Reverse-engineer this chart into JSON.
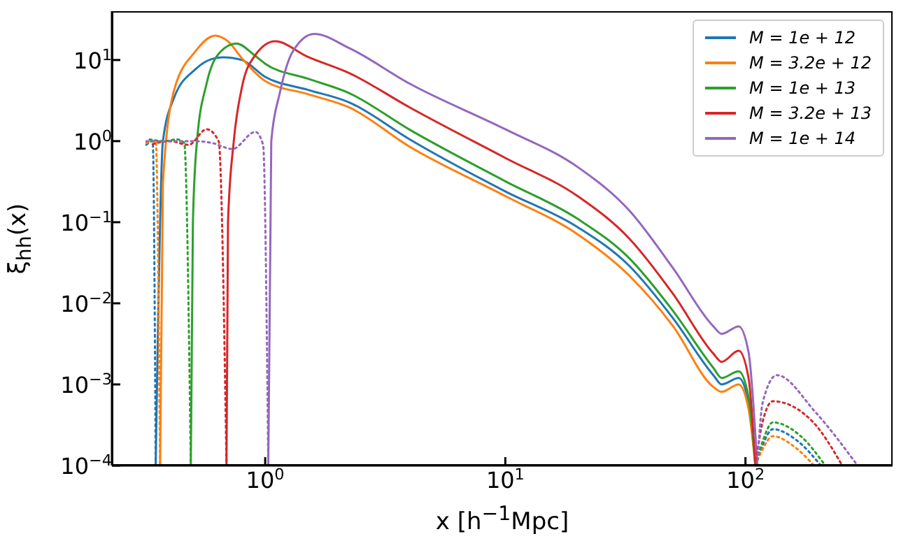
{
  "chart_data": {
    "type": "line",
    "xlabel": "x [h$^{−1}$Mpc]",
    "ylabel": "ξ$_{hh}$(x)",
    "log": "xy",
    "grid": false,
    "legend": "top right",
    "marker": "none",
    "xlim": [
      0.23,
      410
    ],
    "xticks": [
      {
        "value": 1,
        "label": "10$^{0}$"
      },
      {
        "value": 10,
        "label": "10$^{1}$"
      },
      {
        "value": 100,
        "label": "10$^{2}$"
      }
    ],
    "ylim": [
      0.0001,
      40
    ],
    "yticks": [
      {
        "value": 0.0001,
        "label": "10$^{−4}$"
      },
      {
        "value": 0.001,
        "label": "10$^{−3}$"
      },
      {
        "value": 0.01,
        "label": "10$^{−2}$"
      },
      {
        "value": 0.1,
        "label": "10$^{−1}$"
      },
      {
        "value": 1,
        "label": "10$^{0}$"
      },
      {
        "value": 10,
        "label": "10$^{1}$"
      }
    ],
    "series": [
      {
        "name": "M = 1e + 12",
        "color": "#1f77b4",
        "line_style": "solid",
        "x": [
          0.35,
          0.375,
          0.417,
          0.51,
          0.6,
          0.67,
          0.8,
          1,
          1.5,
          2.24,
          4,
          10,
          20,
          32.8,
          50,
          73.5,
          79.6,
          93.7,
          103,
          110
        ],
        "values": [
          0.0001,
          1,
          3.4,
          7.6,
          10.3,
          10.8,
          10,
          6.2,
          4.3,
          3.0,
          1.05,
          0.24,
          0.087,
          0.029,
          0.0065,
          0.0013,
          0.001,
          0.0012,
          0.0006,
          0.0001
        ]
      },
      {
        "name": "M = 3.2e + 12",
        "color": "#ff7f0e",
        "line_style": "solid",
        "x": [
          0.365,
          0.375,
          0.417,
          0.51,
          0.62,
          0.7,
          0.8,
          1,
          1.5,
          2.24,
          4,
          10,
          20,
          32.8,
          50,
          73.5,
          79.6,
          93.7,
          103,
          110
        ],
        "values": [
          0.0001,
          0.3,
          4.2,
          12.6,
          20,
          17,
          10.5,
          5.5,
          3.8,
          2.6,
          0.85,
          0.21,
          0.071,
          0.022,
          0.0052,
          0.00093,
          0.00081,
          0.001,
          0.0005,
          0.0001
        ]
      },
      {
        "name": "M = 1e + 13",
        "color": "#2ca02c",
        "line_style": "solid",
        "x": [
          0.49,
          0.5,
          0.52,
          0.57,
          0.65,
          0.76,
          0.9,
          1,
          1.5,
          2.24,
          4,
          10,
          20,
          32.8,
          50,
          73.5,
          79.6,
          93.7,
          103,
          110
        ],
        "values": [
          0.0001,
          0.1,
          1,
          5.1,
          12.6,
          16,
          11.5,
          9,
          5.9,
          3.9,
          1.38,
          0.32,
          0.11,
          0.036,
          0.008,
          0.0016,
          0.0012,
          0.00145,
          0.0007,
          0.0001
        ]
      },
      {
        "name": "M = 3.2e + 13",
        "color": "#d62728",
        "line_style": "solid",
        "x": [
          0.69,
          0.7,
          0.74,
          0.8,
          0.9,
          1.1,
          1.5,
          2.24,
          4,
          10,
          20,
          32.8,
          50,
          73.5,
          79.6,
          93.7,
          103,
          110
        ],
        "values": [
          0.0001,
          0.1,
          1,
          4.6,
          11,
          17,
          11,
          6.9,
          2.6,
          0.62,
          0.21,
          0.063,
          0.013,
          0.0024,
          0.0019,
          0.0026,
          0.0012,
          0.0001
        ]
      },
      {
        "name": "M = 1e + 14",
        "color": "#9467bd",
        "line_style": "solid",
        "x": [
          1.03,
          1.06,
          1.15,
          1.3,
          1.6,
          2.24,
          4,
          10,
          20,
          32.8,
          50,
          73.5,
          79.6,
          93.7,
          103,
          112
        ],
        "values": [
          0.0001,
          1,
          3.9,
          12.6,
          21,
          14,
          5.1,
          1.4,
          0.48,
          0.14,
          0.027,
          0.0052,
          0.0042,
          0.0052,
          0.0025,
          0.0001
        ]
      },
      {
        "color": "#1f77b4",
        "line_style": "dotted",
        "x": [
          0.32,
          0.34,
          0.35,
          1,
          110,
          118,
          130,
          165,
          206
        ],
        "values": [
          0.9,
          1,
          0.0001,
          null,
          0.0001,
          0.00018,
          0.00028,
          0.0002,
          0.0001
        ]
      },
      {
        "color": "#ff7f0e",
        "line_style": "dotted",
        "x": [
          0.32,
          0.35,
          0.365,
          1,
          110,
          118,
          130,
          160,
          193
        ],
        "values": [
          0.95,
          1,
          0.0001,
          null,
          0.0001,
          0.00016,
          0.00023,
          0.00017,
          0.0001
        ]
      },
      {
        "color": "#2ca02c",
        "line_style": "dotted",
        "x": [
          0.33,
          0.38,
          0.43,
          0.46,
          0.49,
          1,
          110,
          118,
          130,
          170,
          215
        ],
        "values": [
          1.05,
          1,
          1.05,
          0.95,
          0.0001,
          null,
          0.0001,
          0.0002,
          0.00034,
          0.00023,
          0.0001
        ]
      },
      {
        "color": "#d62728",
        "line_style": "dotted",
        "x": [
          0.34,
          0.4,
          0.48,
          0.57,
          0.64,
          0.69,
          1,
          110,
          118,
          130,
          190,
          253
        ],
        "values": [
          0.92,
          1,
          0.9,
          1.4,
          1,
          0.0001,
          null,
          0.0001,
          0.00035,
          0.00062,
          0.00035,
          0.0001
        ]
      },
      {
        "color": "#9467bd",
        "line_style": "dotted",
        "x": [
          0.32,
          0.5,
          0.6,
          0.73,
          0.91,
          0.98,
          1.03,
          5,
          112,
          118,
          135,
          195,
          293
        ],
        "values": [
          1,
          1,
          0.95,
          0.8,
          1.3,
          0.9,
          0.0001,
          null,
          0.0001,
          0.0006,
          0.0013,
          0.00046,
          0.0001
        ]
      }
    ]
  }
}
